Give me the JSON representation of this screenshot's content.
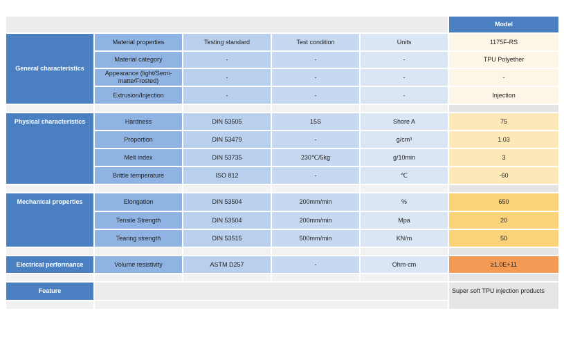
{
  "header": {
    "model_label": "Model"
  },
  "columns": {
    "property": "Material properties",
    "standard": "Testing standard",
    "condition": "Test condition",
    "units": "Units",
    "model": "1175F-RS"
  },
  "sections": {
    "general": {
      "title": "General characteristics",
      "rows": [
        {
          "property": "Material category",
          "standard": "-",
          "condition": "-",
          "units": "-",
          "value": "TPU Polyether"
        },
        {
          "property": "Appearance (light/Semi-matte/Frosted)",
          "standard": "-",
          "condition": "-",
          "units": "-",
          "value": "-"
        },
        {
          "property": "Extrusion/Injection",
          "standard": "-",
          "condition": "-",
          "units": "-",
          "value": "Injection"
        }
      ]
    },
    "physical": {
      "title": "Physical characteristics",
      "rows": [
        {
          "property": "Hardness",
          "standard": "DIN 53505",
          "condition": "15S",
          "units": "Shore A",
          "value": "75"
        },
        {
          "property": "Proportion",
          "standard": "DIN 53479",
          "condition": "-",
          "units": "g/cm³",
          "value": "1.03"
        },
        {
          "property": "Melt index",
          "standard": "DIN 53735",
          "condition": "230℃/5kg",
          "units": "g/10min",
          "value": "3"
        },
        {
          "property": "Brittle temperature",
          "standard": "ISO 812",
          "condition": "-",
          "units": "℃",
          "value": "-60"
        }
      ]
    },
    "mechanical": {
      "title": "Mechanical properties",
      "rows": [
        {
          "property": "Elongation",
          "standard": "DIN 53504",
          "condition": "200mm/min",
          "units": "%",
          "value": "650"
        },
        {
          "property": "Tensile Strength",
          "standard": "DIN 53504",
          "condition": "200mm/min",
          "units": "Mpa",
          "value": "20"
        },
        {
          "property": "Tearing strength",
          "standard": "DIN 53515",
          "condition": "500mm/min",
          "units": "KN/m",
          "value": "50"
        }
      ]
    },
    "electrical": {
      "title": "Electrical performance",
      "rows": [
        {
          "property": "Volume resistivity",
          "standard": "ASTM D257",
          "condition": "-",
          "units": "Ohm-cm",
          "value": "≥1.0E+11"
        }
      ]
    },
    "feature": {
      "title": "Feature",
      "value": "Super soft TPU injection products"
    }
  }
}
